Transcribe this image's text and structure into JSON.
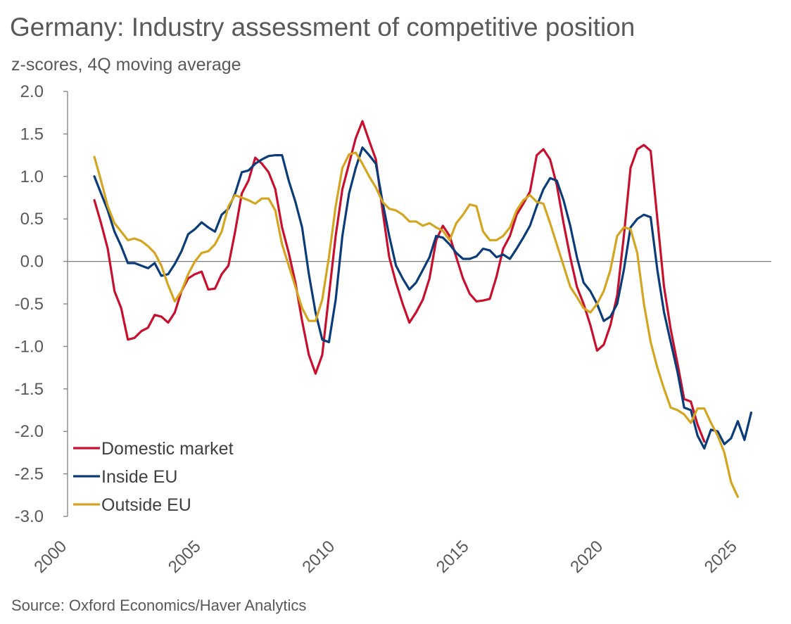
{
  "title": "Germany: Industry assessment of competitive position",
  "subtitle": "z-scores, 4Q moving average",
  "source": "Source: Oxford Economics/Haver Analytics",
  "chart_data": {
    "type": "line",
    "title": "Germany: Industry assessment of competitive position",
    "subtitle": "z-scores, 4Q moving average",
    "xlabel": "",
    "ylabel": "",
    "xlim": [
      2000,
      2026.25
    ],
    "ylim": [
      -3.0,
      2.0
    ],
    "x_ticks": [
      "2000",
      "2005",
      "2010",
      "2015",
      "2020",
      "2025"
    ],
    "y_ticks": [
      "2.0",
      "1.5",
      "1.0",
      "0.5",
      "0.0",
      "-0.5",
      "-1.0",
      "-1.5",
      "-2.0",
      "-2.5",
      "-3.0"
    ],
    "grid": false,
    "legend_position": "bottom-left",
    "series": [
      {
        "name": "Domestic market",
        "color": "#C8102E",
        "points": [
          [
            2001.0,
            0.72
          ],
          [
            2001.25,
            0.45
          ],
          [
            2001.5,
            0.15
          ],
          [
            2001.75,
            -0.35
          ],
          [
            2002.0,
            -0.55
          ],
          [
            2002.25,
            -0.92
          ],
          [
            2002.5,
            -0.9
          ],
          [
            2002.75,
            -0.82
          ],
          [
            2003.0,
            -0.78
          ],
          [
            2003.25,
            -0.63
          ],
          [
            2003.5,
            -0.65
          ],
          [
            2003.75,
            -0.72
          ],
          [
            2004.0,
            -0.6
          ],
          [
            2004.25,
            -0.35
          ],
          [
            2004.5,
            -0.2
          ],
          [
            2004.75,
            -0.15
          ],
          [
            2005.0,
            -0.12
          ],
          [
            2005.25,
            -0.33
          ],
          [
            2005.5,
            -0.32
          ],
          [
            2005.75,
            -0.15
          ],
          [
            2006.0,
            -0.05
          ],
          [
            2006.25,
            0.35
          ],
          [
            2006.5,
            0.8
          ],
          [
            2006.75,
            0.95
          ],
          [
            2007.0,
            1.22
          ],
          [
            2007.25,
            1.15
          ],
          [
            2007.5,
            1.05
          ],
          [
            2007.75,
            0.85
          ],
          [
            2008.0,
            0.4
          ],
          [
            2008.25,
            0.1
          ],
          [
            2008.5,
            -0.25
          ],
          [
            2008.75,
            -0.7
          ],
          [
            2009.0,
            -1.1
          ],
          [
            2009.25,
            -1.32
          ],
          [
            2009.5,
            -1.1
          ],
          [
            2009.75,
            -0.4
          ],
          [
            2010.0,
            0.3
          ],
          [
            2010.25,
            0.85
          ],
          [
            2010.5,
            1.15
          ],
          [
            2010.75,
            1.45
          ],
          [
            2011.0,
            1.65
          ],
          [
            2011.25,
            1.42
          ],
          [
            2011.5,
            1.2
          ],
          [
            2011.75,
            0.6
          ],
          [
            2012.0,
            0.05
          ],
          [
            2012.25,
            -0.25
          ],
          [
            2012.5,
            -0.5
          ],
          [
            2012.75,
            -0.72
          ],
          [
            2013.0,
            -0.6
          ],
          [
            2013.25,
            -0.45
          ],
          [
            2013.5,
            -0.2
          ],
          [
            2013.75,
            0.25
          ],
          [
            2014.0,
            0.42
          ],
          [
            2014.25,
            0.3
          ],
          [
            2014.5,
            0.05
          ],
          [
            2014.75,
            -0.2
          ],
          [
            2015.0,
            -0.38
          ],
          [
            2015.25,
            -0.47
          ],
          [
            2015.5,
            -0.46
          ],
          [
            2015.75,
            -0.44
          ],
          [
            2016.0,
            -0.18
          ],
          [
            2016.25,
            0.15
          ],
          [
            2016.5,
            0.3
          ],
          [
            2016.75,
            0.55
          ],
          [
            2017.0,
            0.68
          ],
          [
            2017.25,
            0.82
          ],
          [
            2017.5,
            1.25
          ],
          [
            2017.75,
            1.32
          ],
          [
            2018.0,
            1.2
          ],
          [
            2018.25,
            0.9
          ],
          [
            2018.5,
            0.45
          ],
          [
            2018.75,
            0.05
          ],
          [
            2019.0,
            -0.3
          ],
          [
            2019.25,
            -0.5
          ],
          [
            2019.5,
            -0.75
          ],
          [
            2019.75,
            -1.05
          ],
          [
            2020.0,
            -0.98
          ],
          [
            2020.25,
            -0.75
          ],
          [
            2020.5,
            -0.4
          ],
          [
            2020.75,
            0.3
          ],
          [
            2021.0,
            1.1
          ],
          [
            2021.25,
            1.32
          ],
          [
            2021.5,
            1.37
          ],
          [
            2021.75,
            1.3
          ],
          [
            2022.0,
            0.5
          ],
          [
            2022.25,
            -0.3
          ],
          [
            2022.5,
            -0.8
          ],
          [
            2022.75,
            -1.2
          ],
          [
            2023.0,
            -1.62
          ],
          [
            2023.25,
            -1.65
          ],
          [
            2023.5,
            -1.92
          ],
          [
            2023.75,
            -2.12
          ]
        ]
      },
      {
        "name": "Inside EU",
        "color": "#0B3C7A",
        "points": [
          [
            2001.0,
            1.0
          ],
          [
            2001.25,
            0.8
          ],
          [
            2001.5,
            0.6
          ],
          [
            2001.75,
            0.35
          ],
          [
            2002.0,
            0.18
          ],
          [
            2002.25,
            -0.02
          ],
          [
            2002.5,
            -0.02
          ],
          [
            2002.75,
            -0.05
          ],
          [
            2003.0,
            -0.08
          ],
          [
            2003.25,
            -0.02
          ],
          [
            2003.5,
            -0.17
          ],
          [
            2003.75,
            -0.15
          ],
          [
            2004.0,
            -0.03
          ],
          [
            2004.25,
            0.12
          ],
          [
            2004.5,
            0.32
          ],
          [
            2004.75,
            0.38
          ],
          [
            2005.0,
            0.46
          ],
          [
            2005.25,
            0.4
          ],
          [
            2005.5,
            0.35
          ],
          [
            2005.75,
            0.55
          ],
          [
            2006.0,
            0.62
          ],
          [
            2006.25,
            0.8
          ],
          [
            2006.5,
            1.05
          ],
          [
            2006.75,
            1.07
          ],
          [
            2007.0,
            1.15
          ],
          [
            2007.25,
            1.2
          ],
          [
            2007.5,
            1.24
          ],
          [
            2007.75,
            1.25
          ],
          [
            2008.0,
            1.25
          ],
          [
            2008.25,
            0.95
          ],
          [
            2008.5,
            0.7
          ],
          [
            2008.75,
            0.4
          ],
          [
            2009.0,
            -0.15
          ],
          [
            2009.25,
            -0.6
          ],
          [
            2009.5,
            -0.92
          ],
          [
            2009.75,
            -0.95
          ],
          [
            2010.0,
            -0.45
          ],
          [
            2010.25,
            0.3
          ],
          [
            2010.5,
            0.8
          ],
          [
            2010.75,
            1.1
          ],
          [
            2011.0,
            1.34
          ],
          [
            2011.25,
            1.25
          ],
          [
            2011.5,
            1.15
          ],
          [
            2011.75,
            0.7
          ],
          [
            2012.0,
            0.3
          ],
          [
            2012.25,
            -0.05
          ],
          [
            2012.5,
            -0.2
          ],
          [
            2012.75,
            -0.33
          ],
          [
            2013.0,
            -0.25
          ],
          [
            2013.25,
            -0.1
          ],
          [
            2013.5,
            0.05
          ],
          [
            2013.75,
            0.3
          ],
          [
            2014.0,
            0.28
          ],
          [
            2014.25,
            0.2
          ],
          [
            2014.5,
            0.1
          ],
          [
            2014.75,
            0.03
          ],
          [
            2015.0,
            0.03
          ],
          [
            2015.25,
            0.06
          ],
          [
            2015.5,
            0.15
          ],
          [
            2015.75,
            0.13
          ],
          [
            2016.0,
            0.05
          ],
          [
            2016.25,
            0.08
          ],
          [
            2016.5,
            0.03
          ],
          [
            2016.75,
            0.15
          ],
          [
            2017.0,
            0.28
          ],
          [
            2017.25,
            0.42
          ],
          [
            2017.5,
            0.65
          ],
          [
            2017.75,
            0.85
          ],
          [
            2018.0,
            0.98
          ],
          [
            2018.25,
            0.95
          ],
          [
            2018.5,
            0.72
          ],
          [
            2018.75,
            0.42
          ],
          [
            2019.0,
            0.05
          ],
          [
            2019.25,
            -0.25
          ],
          [
            2019.5,
            -0.35
          ],
          [
            2019.75,
            -0.5
          ],
          [
            2020.0,
            -0.7
          ],
          [
            2020.25,
            -0.65
          ],
          [
            2020.5,
            -0.5
          ],
          [
            2020.75,
            -0.1
          ],
          [
            2021.0,
            0.4
          ],
          [
            2021.25,
            0.5
          ],
          [
            2021.5,
            0.55
          ],
          [
            2021.75,
            0.52
          ],
          [
            2022.0,
            -0.1
          ],
          [
            2022.25,
            -0.6
          ],
          [
            2022.5,
            -0.95
          ],
          [
            2022.75,
            -1.3
          ],
          [
            2023.0,
            -1.72
          ],
          [
            2023.25,
            -1.75
          ],
          [
            2023.5,
            -2.05
          ],
          [
            2023.75,
            -2.2
          ],
          [
            2024.0,
            -1.98
          ],
          [
            2024.25,
            -2.0
          ],
          [
            2024.5,
            -2.15
          ],
          [
            2024.75,
            -2.08
          ],
          [
            2025.0,
            -1.88
          ],
          [
            2025.25,
            -2.1
          ],
          [
            2025.5,
            -1.78
          ]
        ]
      },
      {
        "name": "Outside EU",
        "color": "#D4A520",
        "points": [
          [
            2001.0,
            1.23
          ],
          [
            2001.25,
            0.95
          ],
          [
            2001.5,
            0.65
          ],
          [
            2001.75,
            0.45
          ],
          [
            2002.0,
            0.35
          ],
          [
            2002.25,
            0.25
          ],
          [
            2002.5,
            0.27
          ],
          [
            2002.75,
            0.24
          ],
          [
            2003.0,
            0.18
          ],
          [
            2003.25,
            0.1
          ],
          [
            2003.5,
            -0.05
          ],
          [
            2003.75,
            -0.28
          ],
          [
            2004.0,
            -0.47
          ],
          [
            2004.25,
            -0.35
          ],
          [
            2004.5,
            -0.15
          ],
          [
            2004.75,
            0.0
          ],
          [
            2005.0,
            0.1
          ],
          [
            2005.25,
            0.12
          ],
          [
            2005.5,
            0.2
          ],
          [
            2005.75,
            0.35
          ],
          [
            2006.0,
            0.65
          ],
          [
            2006.25,
            0.78
          ],
          [
            2006.5,
            0.75
          ],
          [
            2006.75,
            0.72
          ],
          [
            2007.0,
            0.68
          ],
          [
            2007.25,
            0.74
          ],
          [
            2007.5,
            0.74
          ],
          [
            2007.75,
            0.6
          ],
          [
            2008.0,
            0.2
          ],
          [
            2008.25,
            -0.05
          ],
          [
            2008.5,
            -0.3
          ],
          [
            2008.75,
            -0.55
          ],
          [
            2009.0,
            -0.7
          ],
          [
            2009.25,
            -0.7
          ],
          [
            2009.5,
            -0.45
          ],
          [
            2009.75,
            0.05
          ],
          [
            2010.0,
            0.65
          ],
          [
            2010.25,
            1.1
          ],
          [
            2010.5,
            1.26
          ],
          [
            2010.75,
            1.28
          ],
          [
            2011.0,
            1.15
          ],
          [
            2011.25,
            1.0
          ],
          [
            2011.5,
            0.87
          ],
          [
            2011.75,
            0.7
          ],
          [
            2012.0,
            0.62
          ],
          [
            2012.25,
            0.6
          ],
          [
            2012.5,
            0.55
          ],
          [
            2012.75,
            0.47
          ],
          [
            2013.0,
            0.47
          ],
          [
            2013.25,
            0.42
          ],
          [
            2013.5,
            0.45
          ],
          [
            2013.75,
            0.4
          ],
          [
            2014.0,
            0.36
          ],
          [
            2014.25,
            0.25
          ],
          [
            2014.5,
            0.45
          ],
          [
            2014.75,
            0.55
          ],
          [
            2015.0,
            0.67
          ],
          [
            2015.25,
            0.65
          ],
          [
            2015.5,
            0.35
          ],
          [
            2015.75,
            0.25
          ],
          [
            2016.0,
            0.25
          ],
          [
            2016.25,
            0.3
          ],
          [
            2016.5,
            0.4
          ],
          [
            2016.75,
            0.6
          ],
          [
            2017.0,
            0.72
          ],
          [
            2017.25,
            0.78
          ],
          [
            2017.5,
            0.7
          ],
          [
            2017.75,
            0.68
          ],
          [
            2018.0,
            0.45
          ],
          [
            2018.25,
            0.2
          ],
          [
            2018.5,
            -0.05
          ],
          [
            2018.75,
            -0.3
          ],
          [
            2019.0,
            -0.42
          ],
          [
            2019.25,
            -0.55
          ],
          [
            2019.5,
            -0.6
          ],
          [
            2019.75,
            -0.5
          ],
          [
            2020.0,
            -0.35
          ],
          [
            2020.25,
            -0.1
          ],
          [
            2020.5,
            0.3
          ],
          [
            2020.75,
            0.4
          ],
          [
            2021.0,
            0.38
          ],
          [
            2021.25,
            0.1
          ],
          [
            2021.5,
            -0.5
          ],
          [
            2021.75,
            -0.95
          ],
          [
            2022.0,
            -1.25
          ],
          [
            2022.25,
            -1.5
          ],
          [
            2022.5,
            -1.72
          ],
          [
            2022.75,
            -1.75
          ],
          [
            2023.0,
            -1.8
          ],
          [
            2023.25,
            -1.9
          ],
          [
            2023.5,
            -1.73
          ],
          [
            2023.75,
            -1.73
          ],
          [
            2024.0,
            -1.9
          ],
          [
            2024.25,
            -2.05
          ],
          [
            2024.5,
            -2.25
          ],
          [
            2024.75,
            -2.6
          ],
          [
            2025.0,
            -2.77
          ]
        ]
      }
    ]
  }
}
